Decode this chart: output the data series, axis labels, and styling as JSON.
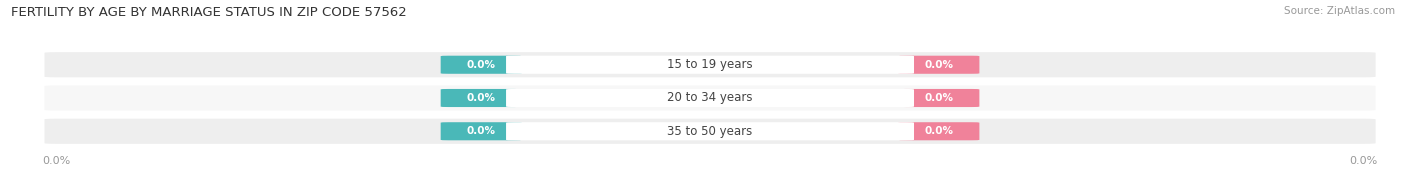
{
  "title": "FERTILITY BY AGE BY MARRIAGE STATUS IN ZIP CODE 57562",
  "source": "Source: ZipAtlas.com",
  "categories": [
    "15 to 19 years",
    "20 to 34 years",
    "35 to 50 years"
  ],
  "married_values": [
    0.0,
    0.0,
    0.0
  ],
  "unmarried_values": [
    0.0,
    0.0,
    0.0
  ],
  "married_color": "#4ab8b8",
  "unmarried_color": "#f0829a",
  "bar_bg_color": "#eeeeee",
  "bar_bg_color2": "#f7f7f7",
  "label_color": "#ffffff",
  "category_label_color": "#444444",
  "xlim_left": -1.0,
  "xlim_right": 1.0,
  "background_color": "#ffffff",
  "title_fontsize": 9.5,
  "tick_fontsize": 8.0,
  "cat_fontsize": 8.5,
  "val_fontsize": 7.5,
  "legend_fontsize": 9.0,
  "source_fontsize": 7.5
}
